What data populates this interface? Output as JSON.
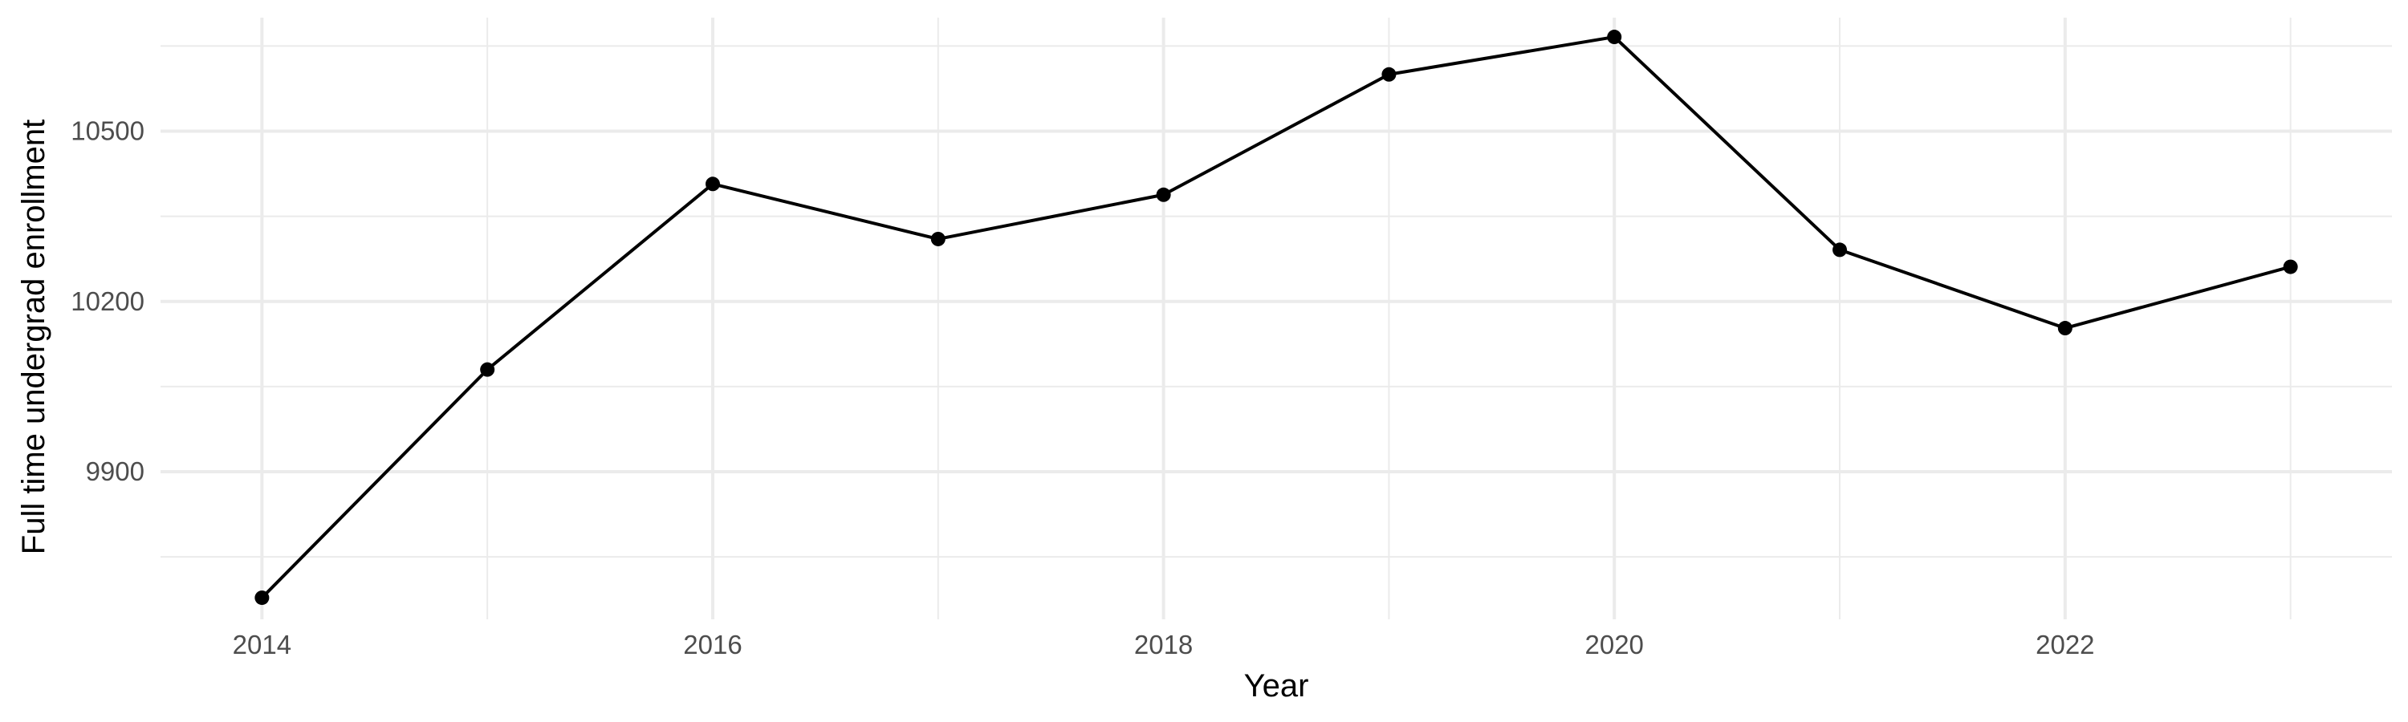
{
  "chart_data": {
    "type": "line",
    "title": "",
    "xlabel": "Year",
    "ylabel": "Full time undergrad enrollment",
    "x": [
      2014,
      2015,
      2016,
      2017,
      2018,
      2019,
      2020,
      2021,
      2022,
      2023
    ],
    "series": [
      {
        "values": [
          9678,
          10080,
          10407,
          10310,
          10388,
          10600,
          10666,
          10291,
          10153,
          10261
        ]
      }
    ],
    "x_ticks": [
      "2014",
      "2016",
      "2018",
      "2020",
      "2022"
    ],
    "y_ticks": [
      "9900",
      "10200",
      "10500"
    ],
    "xlim": [
      2013.55,
      2023.45
    ],
    "ylim": [
      9640,
      10700
    ],
    "grid": true,
    "line_color": "#000000",
    "grid_color": "#ebebeb"
  }
}
